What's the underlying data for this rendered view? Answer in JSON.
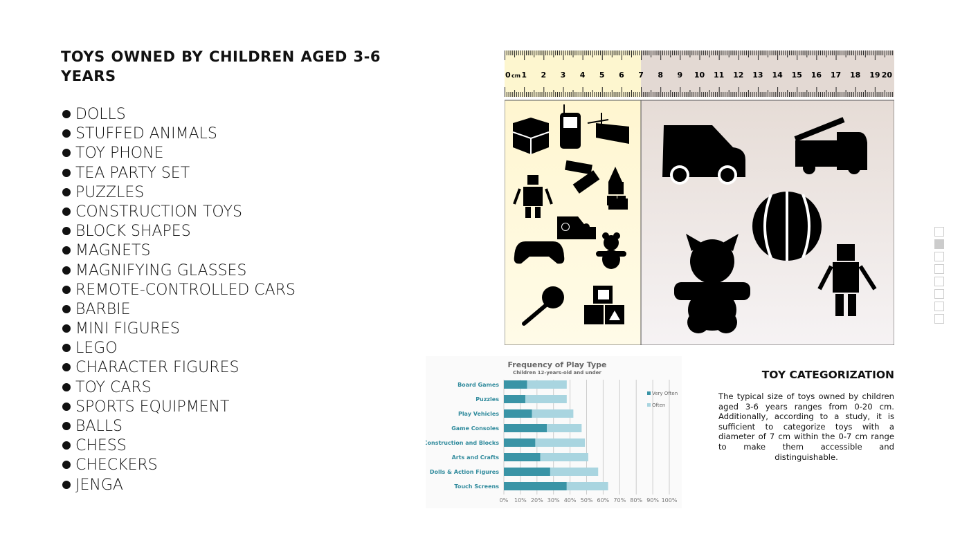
{
  "title": "TOYS OWNED BY CHILDREN AGED 3-6 YEARS",
  "toys": [
    "DOLLS",
    "STUFFED ANIMALS",
    "TOY PHONE",
    "TEA PARTY SET",
    "PUZZLES",
    "CONSTRUCTION TOYS",
    "BLOCK SHAPES",
    "MAGNETS",
    "MAGNIFYING GLASSES",
    "REMOTE-CONTROLLED CARS",
    "BARBIE",
    "MINI FIGURES",
    "LEGO",
    "CHARACTER FIGURES",
    "TOY CARS",
    "SPORTS EQUIPMENT",
    "BALLS",
    "CHESS",
    "CHECKERS",
    "JENGA"
  ],
  "ruler": {
    "unit": "cm",
    "labels": [
      "0",
      "1",
      "2",
      "3",
      "4",
      "5",
      "6",
      "7",
      "8",
      "9",
      "10",
      "11",
      "12",
      "13",
      "14",
      "15",
      "16",
      "17",
      "18",
      "19",
      "20"
    ],
    "highlight_range_cm": [
      0,
      7
    ],
    "colors": {
      "small": "#fdf6cf",
      "large": "#e3d9d3"
    }
  },
  "icons": {
    "small": [
      "rubiks-cube",
      "mobile-phone",
      "xylophone",
      "dominoes",
      "robot",
      "building-blocks-tower",
      "toy-car",
      "game-controller",
      "teddy-bear",
      "rattle",
      "alphabet-blocks"
    ],
    "large": [
      "car",
      "fire-truck",
      "ball",
      "teddy-bear",
      "robot"
    ]
  },
  "categorization": {
    "title": "TOY CATEGORIZATION",
    "text": "The typical size of toys owned by children aged 3-6 years ranges from 0-20 cm. Additionally, according to a study, it is sufficient to categorize toys with a diameter of 7 cm within the 0-7 cm range to make them accessible and distinguishable."
  },
  "pager": {
    "pages": 8,
    "current": 2
  },
  "chart_data": {
    "type": "bar",
    "orientation": "horizontal",
    "stacked": true,
    "title": "Frequency of Play Type",
    "subtitle": "Children 12-years-old and under",
    "categories": [
      "Board Games",
      "Puzzles",
      "Play Vehicles",
      "Game Consoles",
      "Construction and Blocks",
      "Arts and Crafts",
      "Dolls & Action Figures",
      "Touch Screens"
    ],
    "series": [
      {
        "name": "Very Often",
        "color": "#3a94a6",
        "values": [
          14,
          13,
          17,
          26,
          19,
          22,
          28,
          38
        ]
      },
      {
        "name": "Often",
        "color": "#a9d5e0",
        "values": [
          24,
          25,
          25,
          21,
          30,
          29,
          29,
          25
        ]
      }
    ],
    "xlim": [
      0,
      100
    ],
    "xticks": [
      "0%",
      "10%",
      "20%",
      "30%",
      "40%",
      "50%",
      "60%",
      "70%",
      "80%",
      "90%",
      "100%"
    ],
    "grid": true,
    "legend": "right"
  }
}
